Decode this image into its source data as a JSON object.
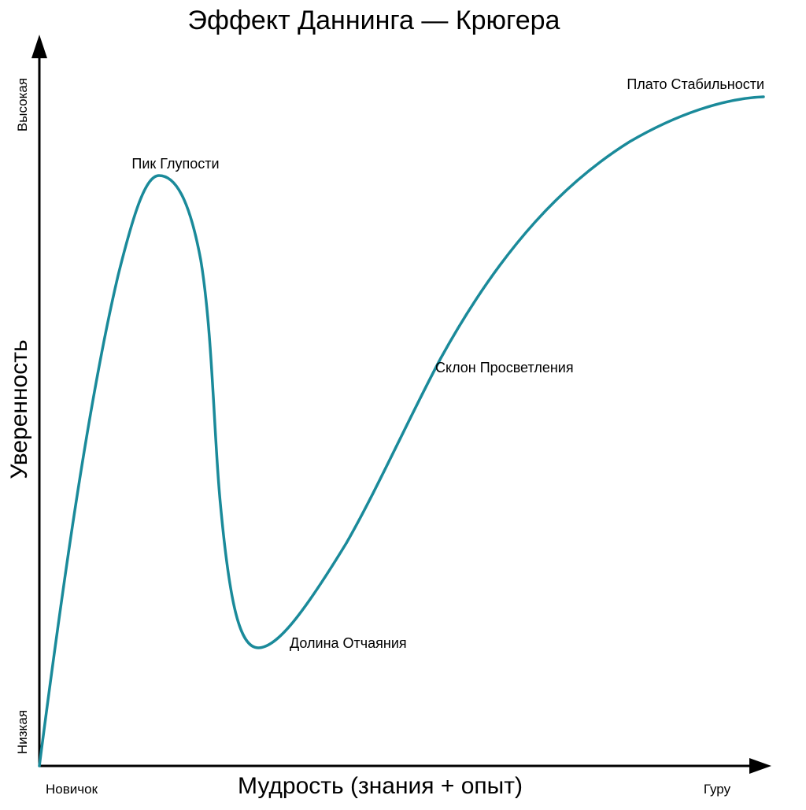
{
  "title": "Эффект Даннинга — Крюгера",
  "axes": {
    "x_title": "Мудрость (знания + опыт)",
    "y_title": "Уверенность",
    "x_start_label": "Новичок",
    "x_end_label": "Гуру",
    "y_low_label": "Низкая",
    "y_high_label": "Высокая"
  },
  "stages": [
    {
      "label": "Пик Глупости"
    },
    {
      "label": "Долина Отчаяния"
    },
    {
      "label": "Склон Просветления"
    },
    {
      "label": "Плато Стабильности"
    }
  ],
  "colors": {
    "curve": "#1a8a9a",
    "axis": "#000000",
    "text": "#000000"
  }
}
